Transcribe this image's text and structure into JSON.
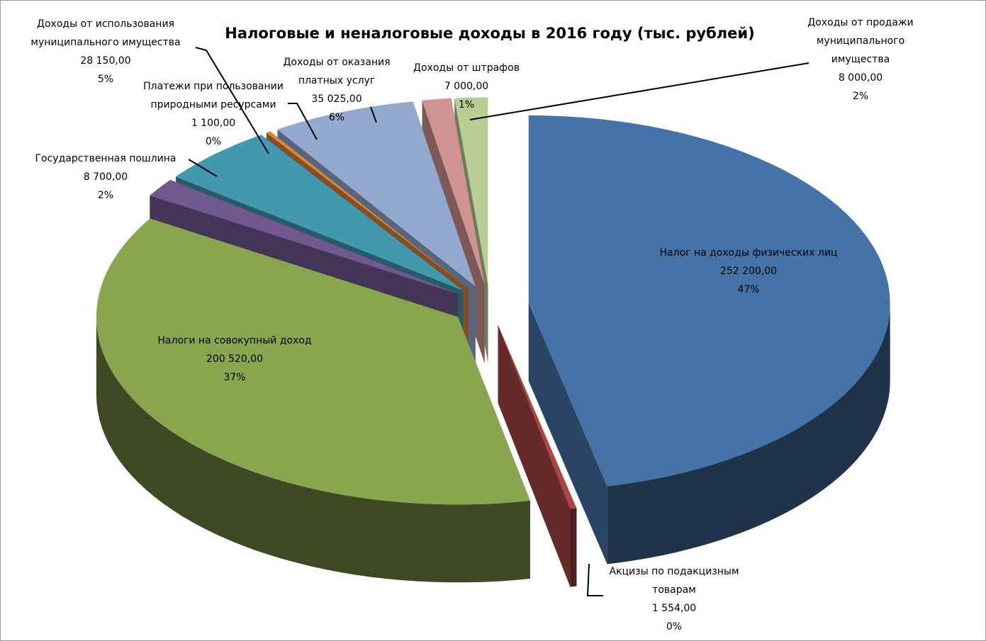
{
  "chart_data": {
    "type": "pie3d",
    "title": "Налоговые и неналоговые доходы в 2016 году (тыс. рублей)",
    "categories": [
      "Налог на доходы физических лиц",
      "Акцизы по подакцизным товарам",
      "Налоги на совокупный доход",
      "Государственная пошлина",
      "Доходы от использования муниципального имущества",
      "Платежи при пользовании природными ресурсами",
      "Доходы от оказания платных услуг",
      "Доходы от штрафов",
      "Доходы от продажи муниципального имущества"
    ],
    "values": [
      252200,
      1554,
      200520,
      8700,
      28150,
      1100,
      35025,
      7000,
      8000
    ],
    "value_labels": [
      "252 200,00",
      "1 554,00",
      "200 520,00",
      "8 700,00",
      "28 150,00",
      "1 100,00",
      "35 025,00",
      "7 000,00",
      "8 000,00"
    ],
    "percent_labels": [
      "47%",
      "0%",
      "37%",
      "2%",
      "5%",
      "0%",
      "6%",
      "1%",
      "2%"
    ],
    "colors": [
      "#4572a7",
      "#aa4643",
      "#89a54e",
      "#71588f",
      "#4198af",
      "#db843d",
      "#93a9cf",
      "#d19392",
      "#b9cd96"
    ]
  }
}
